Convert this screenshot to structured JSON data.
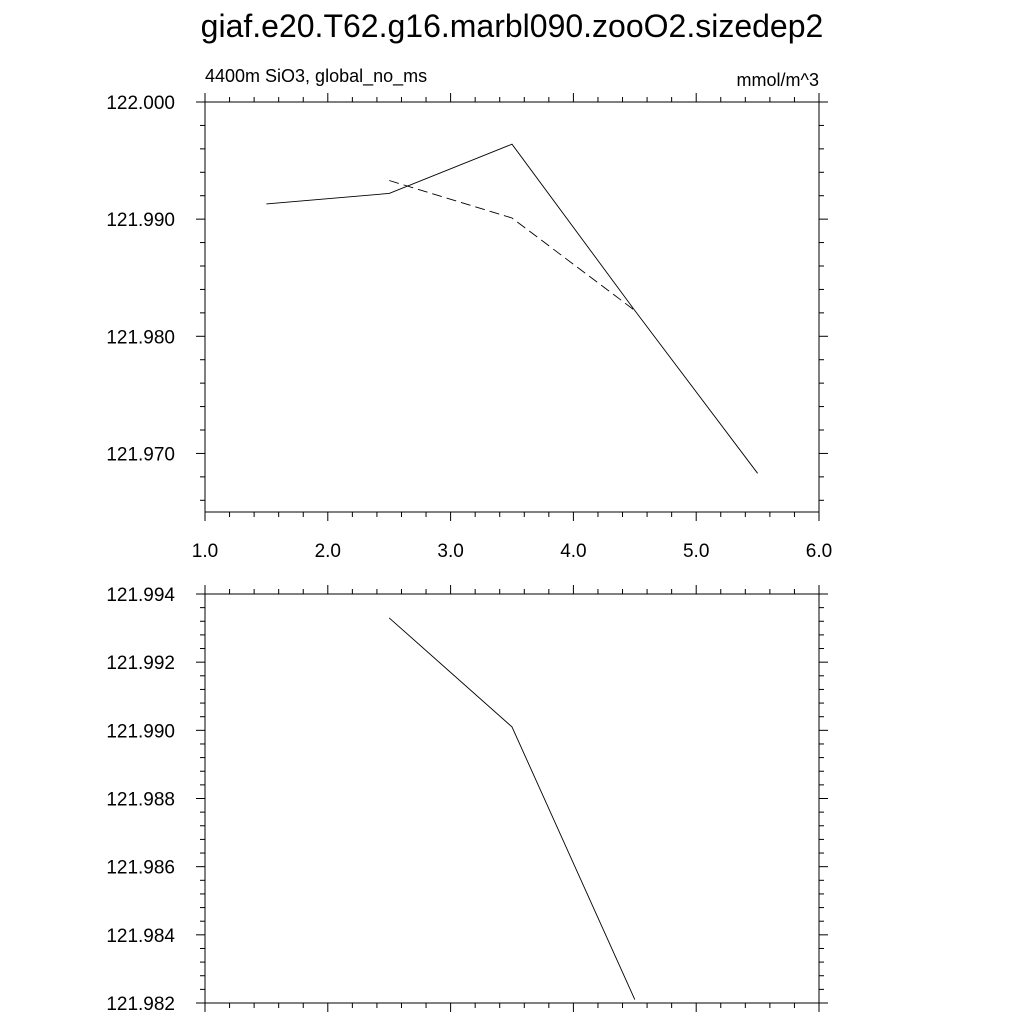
{
  "title": "giaf.e20.T62.g16.marbl090.zooO2.sizedep2",
  "chart_data": [
    {
      "type": "line",
      "subtitle_left": "4400m SiO3, global_no_ms",
      "subtitle_right": "mmol/m^3",
      "xlim": [
        1.0,
        6.0
      ],
      "ylim": [
        121.965,
        122.0
      ],
      "x_ticks": [
        "1.0",
        "2.0",
        "3.0",
        "4.0",
        "5.0",
        "6.0"
      ],
      "y_ticks": [
        "122.000",
        "121.990",
        "121.980",
        "121.970"
      ],
      "grid": false,
      "series": [
        {
          "style": "solid",
          "x": [
            1.5,
            2.5,
            3.5,
            4.5,
            5.5
          ],
          "y": [
            121.9913,
            121.9922,
            121.9964,
            121.9822,
            121.9683
          ]
        },
        {
          "style": "dashed",
          "x": [
            2.5,
            3.5,
            4.5
          ],
          "y": [
            121.9933,
            121.9901,
            121.9822
          ]
        }
      ]
    },
    {
      "type": "line",
      "xlim": [
        1.0,
        6.0
      ],
      "ylim": [
        121.982,
        121.994
      ],
      "y_ticks": [
        "121.994",
        "121.992",
        "121.990",
        "121.988",
        "121.986",
        "121.984",
        "121.982"
      ],
      "grid": false,
      "series": [
        {
          "style": "solid",
          "x": [
            2.5,
            3.5,
            4.5
          ],
          "y": [
            121.9933,
            121.9901,
            121.9821
          ]
        }
      ]
    }
  ]
}
